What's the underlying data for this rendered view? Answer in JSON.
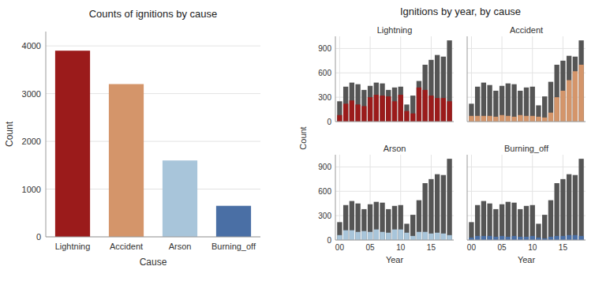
{
  "chart_data": [
    {
      "type": "bar",
      "title": "Counts of ignitions by cause",
      "categories": [
        "Lightning",
        "Accident",
        "Arson",
        "Burning_off"
      ],
      "values": [
        3900,
        3200,
        1600,
        650
      ],
      "colors": [
        "#9B1B1B",
        "#D4956A",
        "#A8C5DA",
        "#4A6FA5"
      ],
      "xlabel": "Cause",
      "ylabel": "Count",
      "ylim": [
        0,
        4300
      ],
      "yticks": [
        0,
        1000,
        2000,
        3000,
        4000
      ],
      "grid": true
    },
    {
      "type": "bar",
      "title": "Ignitions by year, by cause",
      "xlabel": "Year",
      "ylabel": "Count",
      "categories": [
        "00",
        null,
        null,
        null,
        null,
        "05",
        null,
        null,
        null,
        null,
        "10",
        null,
        null,
        null,
        null,
        "15",
        null,
        null,
        null
      ],
      "ylim": [
        0,
        1050
      ],
      "yticks": [
        0,
        300,
        600,
        900
      ],
      "grid": true,
      "panels": [
        {
          "title": "Lightning",
          "tick_labels": "y",
          "series": [
            {
              "color": "#555555",
              "values": [
                250,
                430,
                480,
                460,
                390,
                440,
                480,
                470,
                390,
                420,
                430,
                210,
                320,
                500,
                700,
                760,
                820,
                800,
                1000
              ]
            },
            {
              "color": "#9B1B1B",
              "values": [
                80,
                220,
                260,
                210,
                190,
                300,
                330,
                320,
                310,
                250,
                330,
                130,
                100,
                420,
                390,
                320,
                290,
                290,
                250
              ]
            }
          ]
        },
        {
          "title": "Accident",
          "tick_labels": false,
          "series": [
            {
              "color": "#555555",
              "values": [
                220,
                430,
                480,
                450,
                380,
                440,
                470,
                460,
                380,
                420,
                430,
                200,
                310,
                490,
                700,
                750,
                810,
                800,
                1000
              ]
            },
            {
              "color": "#D4956A",
              "values": [
                70,
                70,
                70,
                70,
                60,
                80,
                70,
                60,
                80,
                70,
                70,
                60,
                50,
                110,
                300,
                380,
                510,
                620,
                700
              ]
            }
          ]
        },
        {
          "title": "Arson",
          "tick_labels": true,
          "series": [
            {
              "color": "#555555",
              "values": [
                220,
                430,
                480,
                450,
                380,
                440,
                470,
                460,
                380,
                420,
                430,
                200,
                310,
                490,
                700,
                750,
                810,
                800,
                1000
              ]
            },
            {
              "color": "#A8C5DA",
              "values": [
                60,
                120,
                120,
                100,
                110,
                100,
                130,
                100,
                90,
                130,
                130,
                90,
                50,
                100,
                100,
                80,
                90,
                80,
                60
              ]
            }
          ]
        },
        {
          "title": "Burning_off",
          "tick_labels": "x",
          "series": [
            {
              "color": "#555555",
              "values": [
                220,
                430,
                480,
                450,
                380,
                440,
                470,
                460,
                380,
                420,
                430,
                200,
                310,
                490,
                700,
                750,
                810,
                800,
                1000
              ]
            },
            {
              "color": "#4A6FA5",
              "values": [
                30,
                50,
                50,
                50,
                40,
                50,
                40,
                50,
                40,
                40,
                50,
                30,
                20,
                40,
                50,
                50,
                60,
                60,
                50
              ]
            }
          ]
        }
      ]
    }
  ]
}
